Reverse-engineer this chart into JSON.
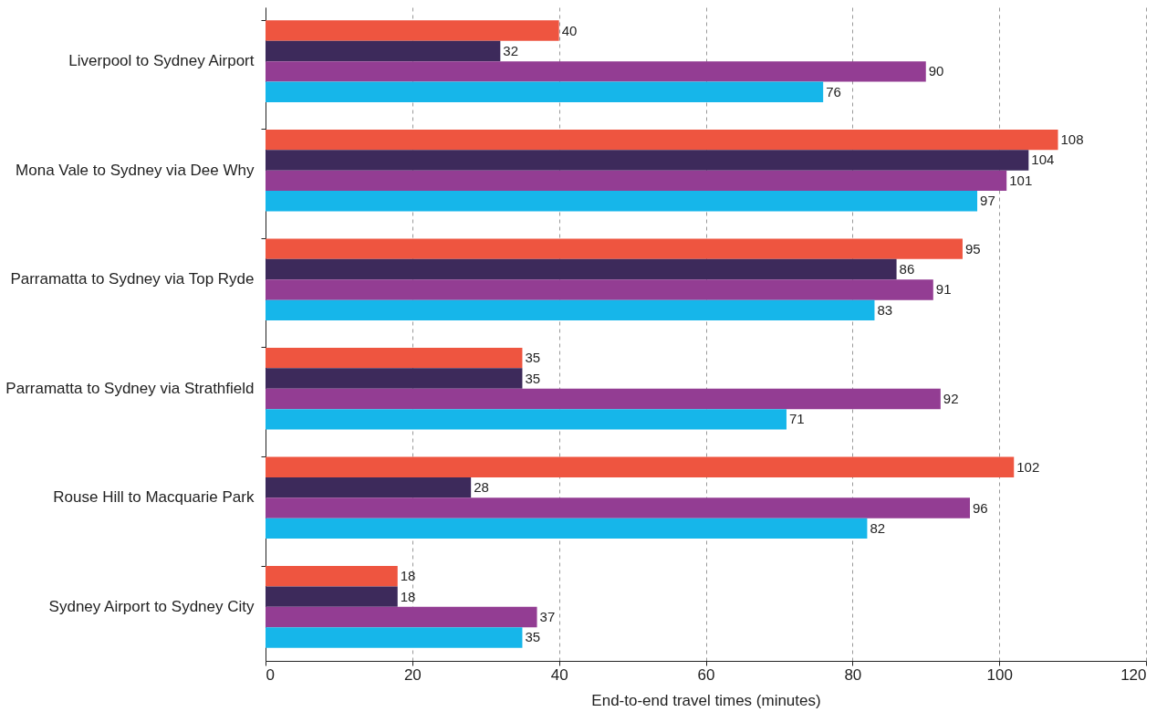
{
  "chart_data": {
    "type": "bar",
    "orientation": "horizontal",
    "xlabel": "End-to-end travel times (minutes)",
    "categories": [
      "Liverpool to Sydney Airport",
      "Mona Vale to Sydney via Dee Why",
      "Parramatta to Sydney via Top Ryde",
      "Parramatta to Sydney via Strathfield",
      "Rouse Hill to Macquarie Park",
      "Sydney Airport to Sydney City"
    ],
    "series": [
      {
        "color": "#ee5540",
        "values": [
          40,
          108,
          95,
          35,
          102,
          18
        ]
      },
      {
        "color": "#3d2a5b",
        "values": [
          32,
          104,
          86,
          35,
          28,
          18
        ]
      },
      {
        "color": "#933d93",
        "values": [
          90,
          101,
          91,
          92,
          96,
          37
        ]
      },
      {
        "color": "#16b6ea",
        "values": [
          76,
          97,
          83,
          71,
          82,
          35
        ]
      }
    ],
    "xlim": [
      0,
      120
    ],
    "xticks": [
      0,
      20,
      40,
      60,
      80,
      100,
      120
    ],
    "grid": "x",
    "data_labels": true
  }
}
